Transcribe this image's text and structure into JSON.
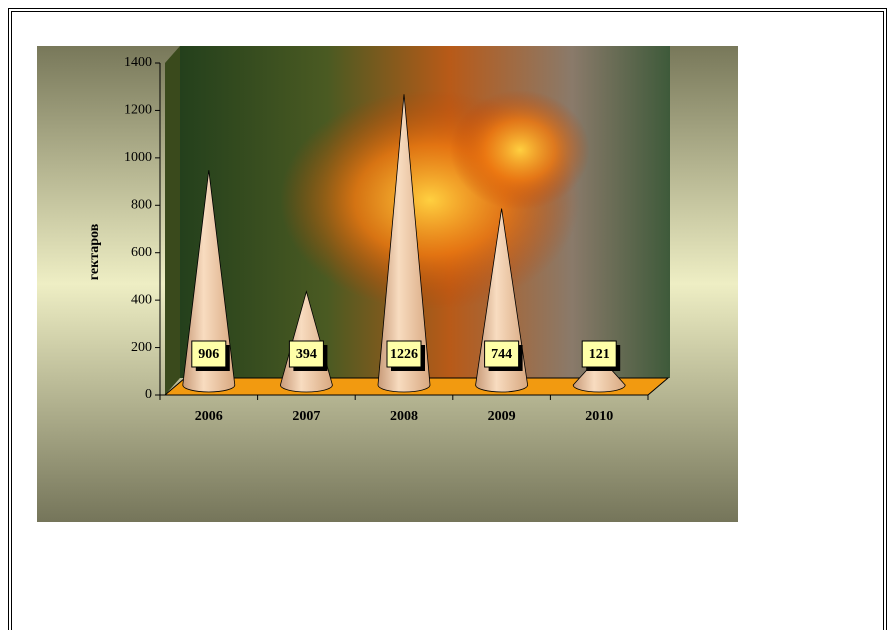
{
  "chart_data": {
    "type": "cone",
    "y_label": "гектаров",
    "categories": [
      "2006",
      "2007",
      "2008",
      "2009",
      "2010"
    ],
    "values": [
      906,
      394,
      1226,
      744,
      121
    ],
    "color": "#f2c9a0",
    "ylim": [
      0,
      1400
    ],
    "yticks": [
      0,
      200,
      400,
      600,
      800,
      1000,
      1200,
      1400
    ]
  }
}
